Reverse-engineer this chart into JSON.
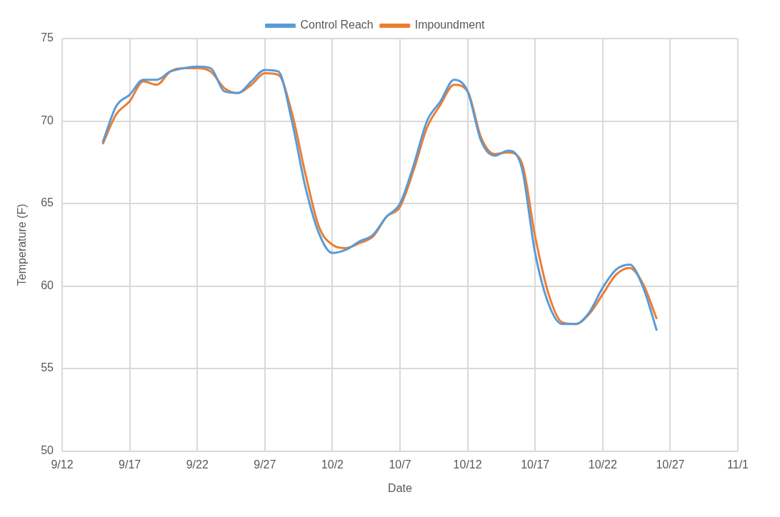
{
  "chart_data": {
    "type": "line",
    "xlabel": "Date",
    "ylabel": "Temperature (F)",
    "legend": "top",
    "grid": true,
    "marker": "none",
    "x": [
      "--09-15",
      "--09-16",
      "--09-17",
      "--09-18",
      "--09-19",
      "--09-20",
      "--09-21",
      "--09-22",
      "--09-23",
      "--09-24",
      "--09-25",
      "--09-26",
      "--09-27",
      "--09-28",
      "--09-29",
      "--09-30",
      "--10-01",
      "--10-02",
      "--10-03",
      "--10-04",
      "--10-05",
      "--10-06",
      "--10-07",
      "--10-08",
      "--10-09",
      "--10-10",
      "--10-11",
      "--10-12",
      "--10-13",
      "--10-14",
      "--10-15",
      "--10-16",
      "--10-17",
      "--10-18",
      "--10-19",
      "--10-20",
      "--10-21",
      "--10-22",
      "--10-23",
      "--10-24",
      "--10-25",
      "--10-26"
    ],
    "series": [
      {
        "name": "Control Reach",
        "color": "#5b9bd5",
        "values": [
          68.7,
          70.9,
          71.6,
          72.5,
          72.5,
          73.0,
          73.2,
          73.3,
          73.2,
          71.8,
          71.7,
          72.4,
          73.1,
          73.0,
          70.0,
          66.0,
          63.2,
          62.0,
          62.2,
          62.7,
          63.1,
          64.2,
          65.0,
          67.3,
          70.0,
          71.2,
          72.5,
          71.8,
          68.8,
          67.9,
          68.2,
          67.2,
          62.0,
          58.9,
          57.7,
          57.7,
          58.4,
          59.9,
          61.0,
          61.3,
          59.9,
          57.3
        ]
      },
      {
        "name": "Impoundment",
        "color": "#ed7d31",
        "values": [
          68.6,
          70.4,
          71.2,
          72.4,
          72.2,
          73.0,
          73.2,
          73.2,
          73.0,
          72.0,
          71.7,
          72.2,
          72.9,
          72.8,
          70.5,
          66.8,
          63.6,
          62.5,
          62.3,
          62.6,
          63.0,
          64.2,
          64.8,
          67.0,
          69.6,
          71.0,
          72.2,
          71.8,
          69.0,
          68.0,
          68.1,
          67.5,
          63.0,
          59.5,
          57.8,
          57.7,
          58.3,
          59.5,
          60.7,
          61.1,
          60.1,
          58.0
        ]
      }
    ],
    "xlim": [
      "--09-12",
      "--11-01"
    ],
    "xticks": [
      {
        "value": "--09-12",
        "label": "9/12"
      },
      {
        "value": "--09-17",
        "label": "9/17"
      },
      {
        "value": "--09-22",
        "label": "9/22"
      },
      {
        "value": "--09-27",
        "label": "9/27"
      },
      {
        "value": "--10-02",
        "label": "10/2"
      },
      {
        "value": "--10-07",
        "label": "10/7"
      },
      {
        "value": "--10-12",
        "label": "10/12"
      },
      {
        "value": "--10-17",
        "label": "10/17"
      },
      {
        "value": "--10-22",
        "label": "10/22"
      },
      {
        "value": "--10-27",
        "label": "10/27"
      },
      {
        "value": "--11-01",
        "label": "11/1"
      }
    ],
    "ylim": [
      50,
      75
    ],
    "yticks": [
      50,
      55,
      60,
      65,
      70,
      75
    ]
  }
}
